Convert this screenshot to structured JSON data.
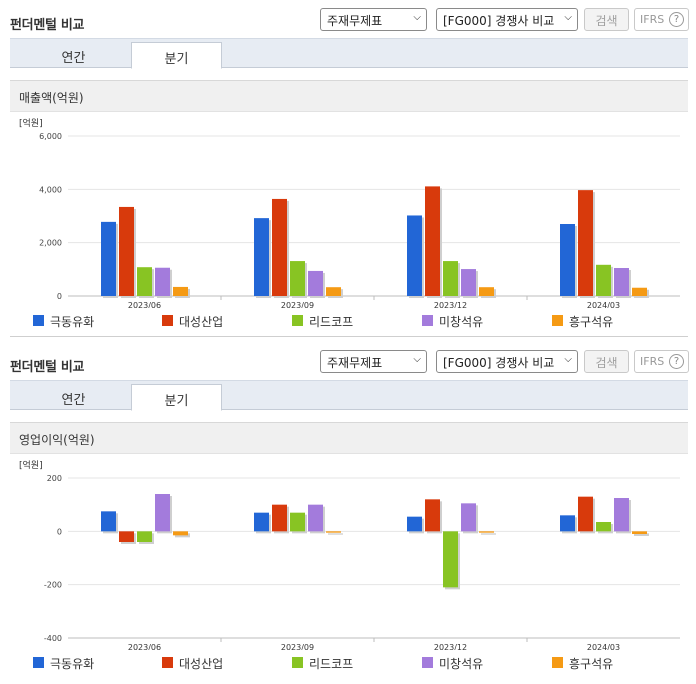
{
  "panels": [
    {
      "title": "펀더멘털 비교",
      "select1": "주재무제표",
      "select2": "[FG000] 경쟁사 비교",
      "search_label": "검색",
      "ifrs_label": "IFRS",
      "ifrs_help": "?",
      "tabs": [
        "연간",
        "분기"
      ],
      "active_tab": 1,
      "subtitle": "매출액(억원)"
    },
    {
      "title": "펀더멘털 비교",
      "select1": "주재무제표",
      "select2": "[FG000] 경쟁사 비교",
      "search_label": "검색",
      "ifrs_label": "IFRS",
      "ifrs_help": "?",
      "tabs": [
        "연간",
        "분기"
      ],
      "active_tab": 1,
      "subtitle": "영업이익(억원)"
    }
  ],
  "chart_data": [
    {
      "type": "bar",
      "title": "매출액(억원)",
      "unit_label": "[억원]",
      "categories": [
        "2023/06",
        "2023/09",
        "2023/12",
        "2024/03"
      ],
      "ylim": [
        0,
        6000
      ],
      "yticks": [
        0,
        2000,
        4000,
        6000
      ],
      "ytick_labels": [
        "0",
        "2,000",
        "4,000",
        "6,000"
      ],
      "grid": true,
      "legend": "bottom",
      "series": [
        {
          "name": "극동유화",
          "color": "#2266d6",
          "values": [
            2780,
            2920,
            3020,
            2700
          ]
        },
        {
          "name": "대성산업",
          "color": "#d83a0c",
          "values": [
            3340,
            3640,
            4110,
            3970
          ]
        },
        {
          "name": "리드코프",
          "color": "#88c423",
          "values": [
            1080,
            1310,
            1310,
            1170
          ]
        },
        {
          "name": "미창석유",
          "color": "#a37bdc",
          "values": [
            1060,
            940,
            1010,
            1050
          ]
        },
        {
          "name": "흥구석유",
          "color": "#f59a14",
          "values": [
            340,
            330,
            330,
            310
          ]
        }
      ]
    },
    {
      "type": "bar",
      "title": "영업이익(억원)",
      "unit_label": "[억원]",
      "categories": [
        "2023/06",
        "2023/09",
        "2023/12",
        "2024/03"
      ],
      "ylim": [
        -400,
        200
      ],
      "yticks": [
        -400,
        -200,
        0,
        200
      ],
      "ytick_labels": [
        "-400",
        "-200",
        "0",
        "200"
      ],
      "grid": true,
      "legend": "bottom",
      "series": [
        {
          "name": "극동유화",
          "color": "#2266d6",
          "values": [
            75,
            70,
            55,
            60
          ]
        },
        {
          "name": "대성산업",
          "color": "#d83a0c",
          "values": [
            -40,
            100,
            120,
            130
          ]
        },
        {
          "name": "리드코프",
          "color": "#88c423",
          "values": [
            -40,
            70,
            -210,
            35
          ]
        },
        {
          "name": "미창석유",
          "color": "#a37bdc",
          "values": [
            140,
            100,
            105,
            125
          ]
        },
        {
          "name": "흥구석유",
          "color": "#f59a14",
          "values": [
            -15,
            -5,
            -5,
            -10
          ]
        }
      ]
    }
  ]
}
